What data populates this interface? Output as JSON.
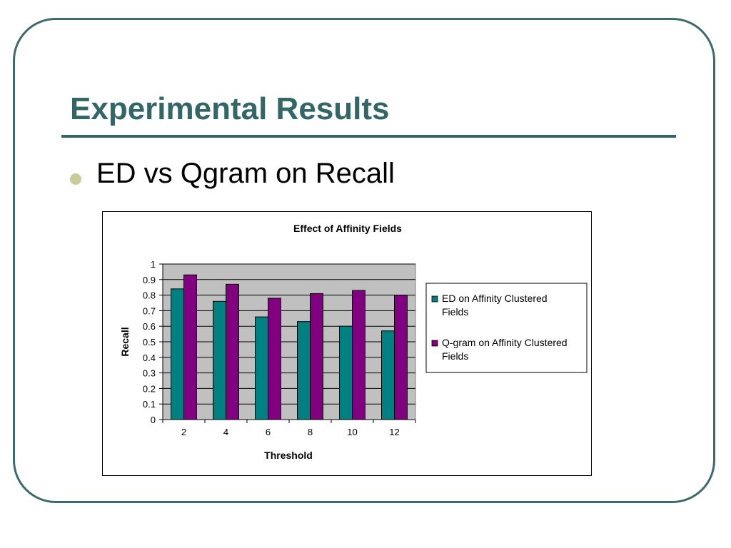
{
  "slide": {
    "title": "Experimental Results",
    "bullet": "ED vs Qgram on Recall"
  },
  "colors": {
    "title": "#336666",
    "ed_series": "#008080",
    "qgram_series": "#800080",
    "plot_background": "#c0c0c0"
  },
  "chart_data": {
    "type": "bar",
    "title": "Effect of Affinity Fields",
    "xlabel": "Threshold",
    "ylabel": "Recall",
    "categories": [
      "2",
      "4",
      "6",
      "8",
      "10",
      "12"
    ],
    "series": [
      {
        "name": "ED on Affinity Clustered Fields",
        "values": [
          0.84,
          0.76,
          0.66,
          0.63,
          0.6,
          0.57
        ]
      },
      {
        "name": "Q-gram on Affinity Clustered Fields",
        "values": [
          0.93,
          0.87,
          0.78,
          0.81,
          0.83,
          0.8
        ]
      }
    ],
    "yticks": [
      "0",
      "0.1",
      "0.2",
      "0.3",
      "0.4",
      "0.5",
      "0.6",
      "0.7",
      "0.8",
      "0.9",
      "1"
    ],
    "ylim": [
      0,
      1
    ],
    "grid": true,
    "legend_position": "right"
  }
}
